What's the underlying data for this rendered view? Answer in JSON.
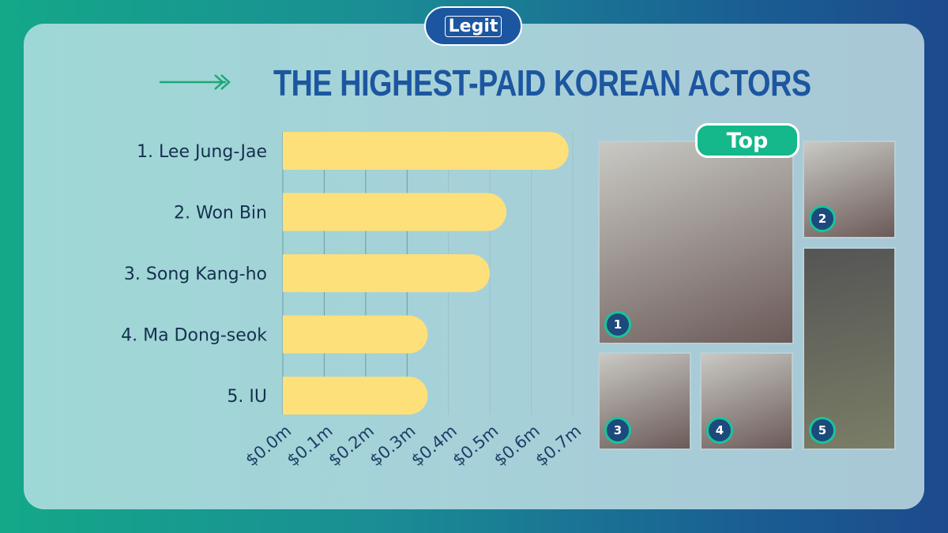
{
  "brand": "Legit",
  "chart_data": {
    "type": "bar",
    "orientation": "horizontal",
    "title": "THE HIGHEST-PAID KOREAN ACTORS",
    "categories": [
      "1. Lee Jung-Jae",
      "2. Won Bin",
      "3. Song Kang-ho",
      "4. Ma Dong-seok",
      "5. IU"
    ],
    "values": [
      0.69,
      0.54,
      0.5,
      0.35,
      0.35
    ],
    "unit": "$m",
    "xlim": [
      0,
      0.7
    ],
    "ticks": [
      "$0.0m",
      "$0.1m",
      "$0.2m",
      "$0.3m",
      "$0.4m",
      "$0.5m",
      "$0.6m",
      "$0.7m"
    ],
    "grid": true,
    "bar_color": "#fde07a"
  },
  "photos": {
    "label": "Top",
    "badges": [
      "1",
      "2",
      "3",
      "4",
      "5"
    ]
  },
  "colors": {
    "title": "#1d56a0",
    "accent": "#14b88a"
  }
}
